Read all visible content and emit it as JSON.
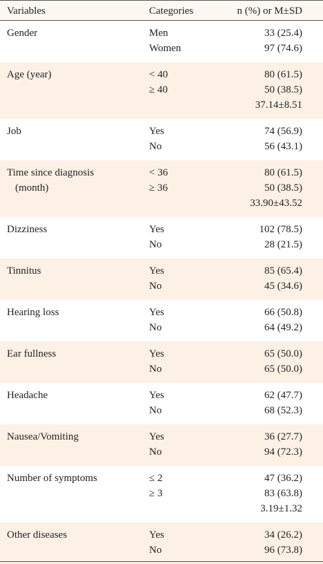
{
  "header": {
    "variable": "Variables",
    "category": "Categories",
    "value": "n (%) or M±SD"
  },
  "groups": [
    {
      "variable_lines": [
        "Gender"
      ],
      "rows": [
        {
          "category": "Men",
          "value": "33 (25.4)"
        },
        {
          "category": "Women",
          "value": "97 (74.6)"
        }
      ]
    },
    {
      "variable_lines": [
        "Age (year)"
      ],
      "rows": [
        {
          "category": "< 40",
          "value": "80 (61.5)"
        },
        {
          "category": "≥ 40",
          "value": "50 (38.5)"
        },
        {
          "category": null,
          "value": "37.14±8.51"
        }
      ]
    },
    {
      "variable_lines": [
        "Job"
      ],
      "rows": [
        {
          "category": "Yes",
          "value": "74 (56.9)"
        },
        {
          "category": "No",
          "value": "56 (43.1)"
        }
      ]
    },
    {
      "variable_lines": [
        "Time since diagnosis",
        "(month)"
      ],
      "rows": [
        {
          "category": "< 36",
          "value": "80 (61.5)"
        },
        {
          "category": "≥ 36",
          "value": "50 (38.5)"
        },
        {
          "category": null,
          "value": "33.90±43.52"
        }
      ]
    },
    {
      "variable_lines": [
        "Dizziness"
      ],
      "rows": [
        {
          "category": "Yes",
          "value": "102 (78.5)"
        },
        {
          "category": "No",
          "value": "28 (21.5)"
        }
      ]
    },
    {
      "variable_lines": [
        "Tinnitus"
      ],
      "rows": [
        {
          "category": "Yes",
          "value": "85 (65.4)"
        },
        {
          "category": "No",
          "value": "45 (34.6)"
        }
      ]
    },
    {
      "variable_lines": [
        "Hearing loss"
      ],
      "rows": [
        {
          "category": "Yes",
          "value": "66 (50.8)"
        },
        {
          "category": "No",
          "value": "64 (49.2)"
        }
      ]
    },
    {
      "variable_lines": [
        "Ear fullness"
      ],
      "rows": [
        {
          "category": "Yes",
          "value": "65 (50.0)"
        },
        {
          "category": "No",
          "value": "65 (50.0)"
        }
      ]
    },
    {
      "variable_lines": [
        "Headache"
      ],
      "rows": [
        {
          "category": "Yes",
          "value": "62 (47.7)"
        },
        {
          "category": "No",
          "value": "68 (52.3)"
        }
      ]
    },
    {
      "variable_lines": [
        "Nausea/Vomiting"
      ],
      "rows": [
        {
          "category": "Yes",
          "value": "36 (27.7)"
        },
        {
          "category": "No",
          "value": "94 (72.3)"
        }
      ]
    },
    {
      "variable_lines": [
        "Number of symptoms"
      ],
      "rows": [
        {
          "category": "≤ 2",
          "value": "47 (36.2)"
        },
        {
          "category": "≥ 3",
          "value": "83 (63.8)"
        },
        {
          "category": null,
          "value": "3.19±1.32"
        }
      ]
    },
    {
      "variable_lines": [
        "Other diseases"
      ],
      "rows": [
        {
          "category": "Yes",
          "value": "34 (26.2)"
        },
        {
          "category": "No",
          "value": "96 (73.8)"
        }
      ]
    }
  ]
}
